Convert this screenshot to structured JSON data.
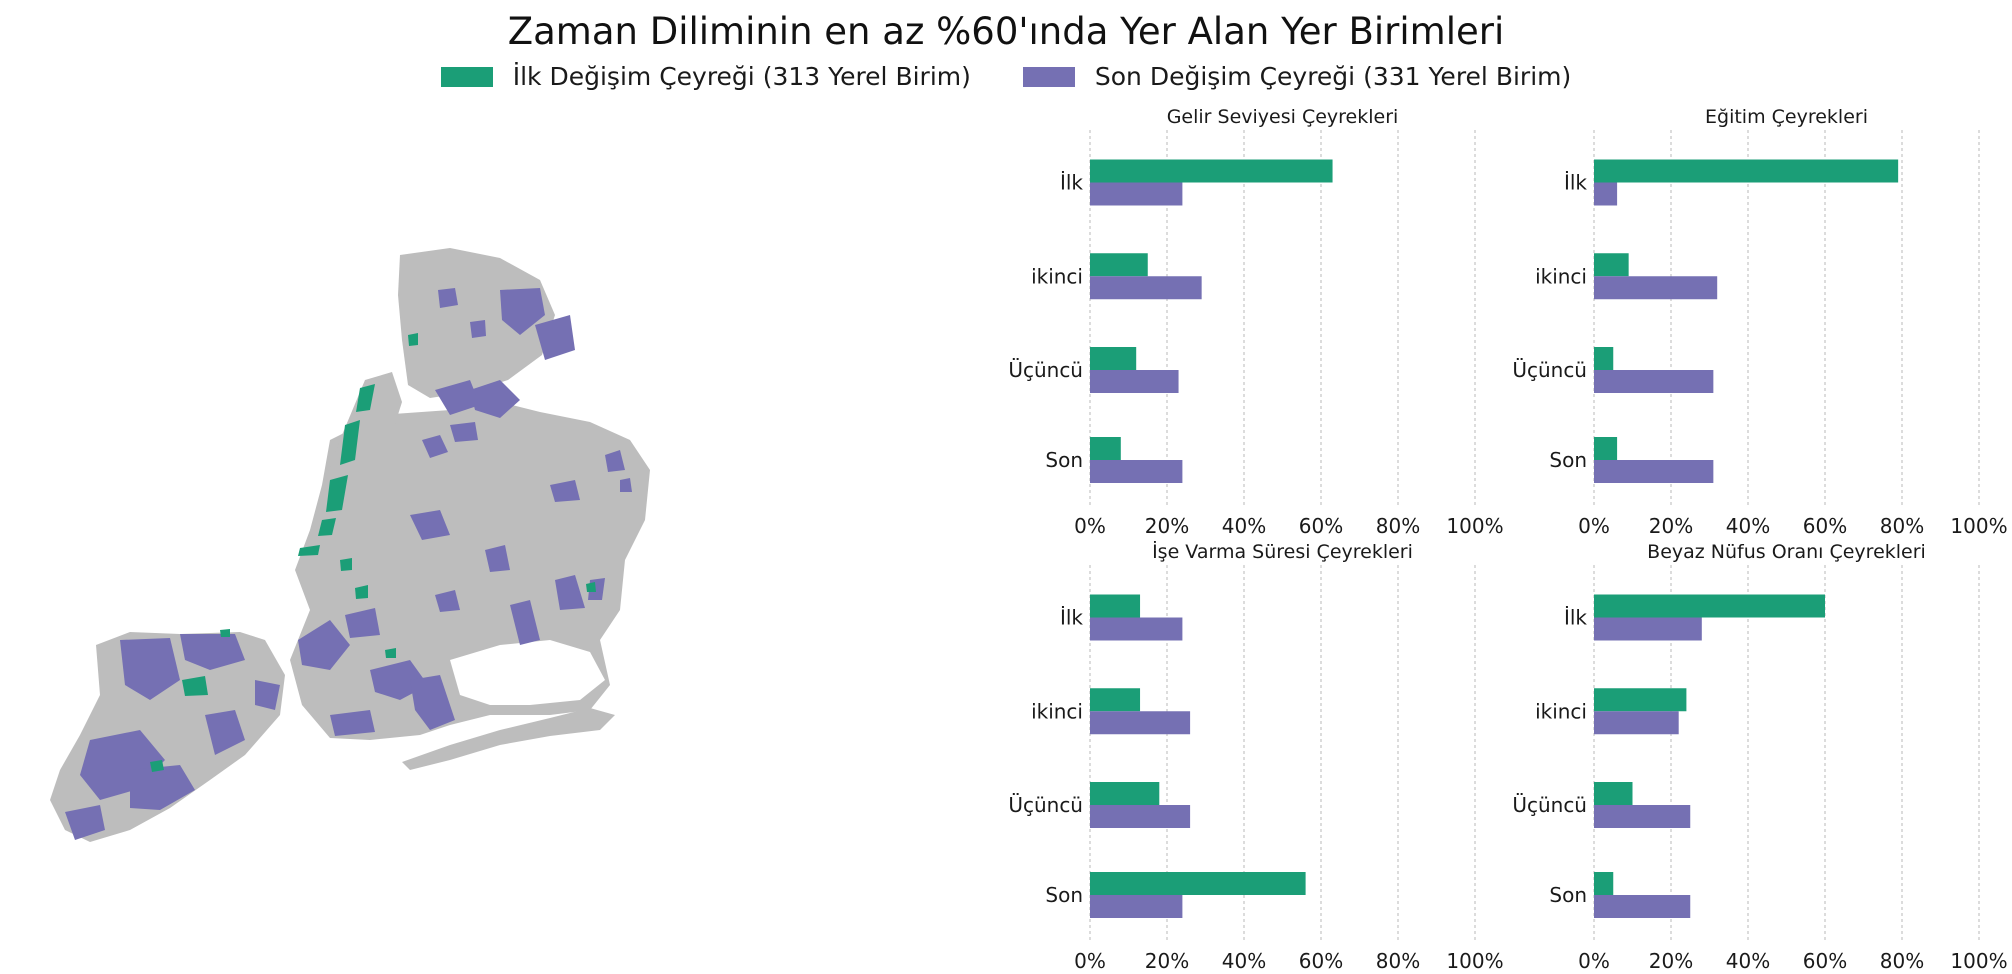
{
  "title": "Zaman Diliminin en az %60'ında Yer Alan Yer Birimleri",
  "legend": [
    {
      "label": "İlk Değişim Çeyreği (313 Yerel Birim)",
      "color": "#1b9e77"
    },
    {
      "label": "Son Değişim Çeyreği (331 Yerel Birim)",
      "color": "#7570b3"
    }
  ],
  "map": {
    "land_color": "#bdbdbd",
    "highlight_first": "#1b9e77",
    "highlight_last": "#7570b3"
  },
  "chart_data": [
    {
      "type": "bar",
      "orientation": "horizontal",
      "title": "Gelir Seviyesi Çeyrekleri",
      "categories": [
        "İlk",
        "ikinci",
        "Üçüncü",
        "Son"
      ],
      "series": [
        {
          "name": "İlk Değişim Çeyreği (313 Yerel Birim)",
          "values": [
            63,
            15,
            12,
            8
          ]
        },
        {
          "name": "Son Değişim Çeyreği (331 Yerel Birim)",
          "values": [
            24,
            29,
            23,
            24
          ]
        }
      ],
      "xlim": [
        0,
        100
      ],
      "xticks": [
        "0%",
        "20%",
        "40%",
        "60%",
        "80%",
        "100%"
      ],
      "grid": "x"
    },
    {
      "type": "bar",
      "orientation": "horizontal",
      "title": "Eğitim Çeyrekleri",
      "categories": [
        "İlk",
        "ikinci",
        "Üçüncü",
        "Son"
      ],
      "series": [
        {
          "name": "İlk Değişim Çeyreği (313 Yerel Birim)",
          "values": [
            79,
            9,
            5,
            6
          ]
        },
        {
          "name": "Son Değişim Çeyreği (331 Yerel Birim)",
          "values": [
            6,
            32,
            31,
            31
          ]
        }
      ],
      "xlim": [
        0,
        100
      ],
      "xticks": [
        "0%",
        "20%",
        "40%",
        "60%",
        "80%",
        "100%"
      ],
      "grid": "x"
    },
    {
      "type": "bar",
      "orientation": "horizontal",
      "title": "İşe Varma Süresi Çeyrekleri",
      "categories": [
        "İlk",
        "ikinci",
        "Üçüncü",
        "Son"
      ],
      "series": [
        {
          "name": "İlk Değişim Çeyreği (313 Yerel Birim)",
          "values": [
            13,
            13,
            18,
            56
          ]
        },
        {
          "name": "Son Değişim Çeyreği (331 Yerel Birim)",
          "values": [
            24,
            26,
            26,
            24
          ]
        }
      ],
      "xlim": [
        0,
        100
      ],
      "xticks": [
        "0%",
        "20%",
        "40%",
        "60%",
        "80%",
        "100%"
      ],
      "grid": "x"
    },
    {
      "type": "bar",
      "orientation": "horizontal",
      "title": "Beyaz Nüfus Oranı Çeyrekleri",
      "categories": [
        "İlk",
        "ikinci",
        "Üçüncü",
        "Son"
      ],
      "series": [
        {
          "name": "İlk Değişim Çeyreği (313 Yerel Birim)",
          "values": [
            60,
            24,
            10,
            5
          ]
        },
        {
          "name": "Son Değişim Çeyreği (331 Yerel Birim)",
          "values": [
            28,
            22,
            25,
            25
          ]
        }
      ],
      "xlim": [
        0,
        100
      ],
      "xticks": [
        "0%",
        "20%",
        "40%",
        "60%",
        "80%",
        "100%"
      ],
      "grid": "x"
    }
  ]
}
